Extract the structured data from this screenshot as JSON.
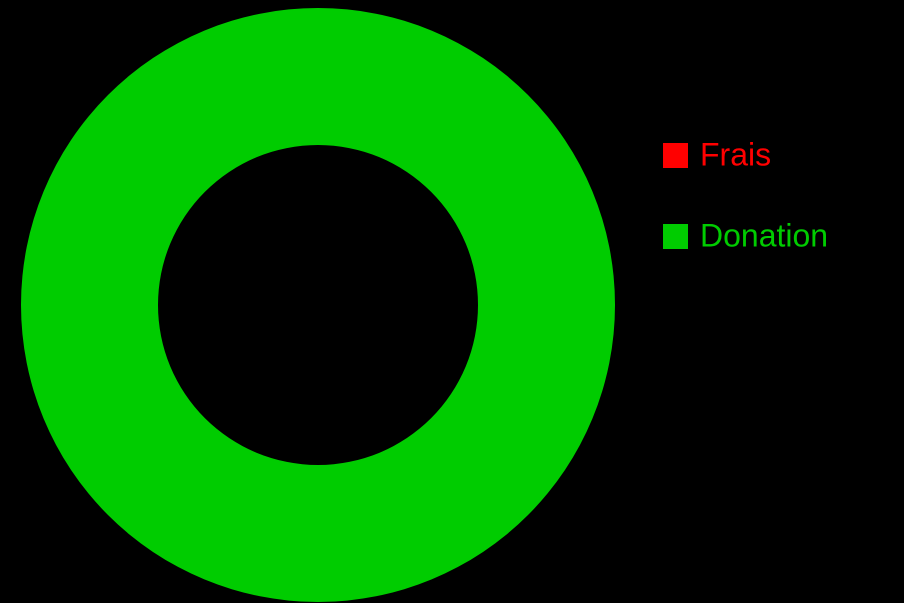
{
  "chart_data": {
    "type": "pie",
    "donut": true,
    "legend": "right",
    "categories": [
      "Frais",
      "Donation"
    ],
    "values": [
      0,
      100
    ],
    "colors": [
      "#ff0000",
      "#00cc00"
    ]
  }
}
